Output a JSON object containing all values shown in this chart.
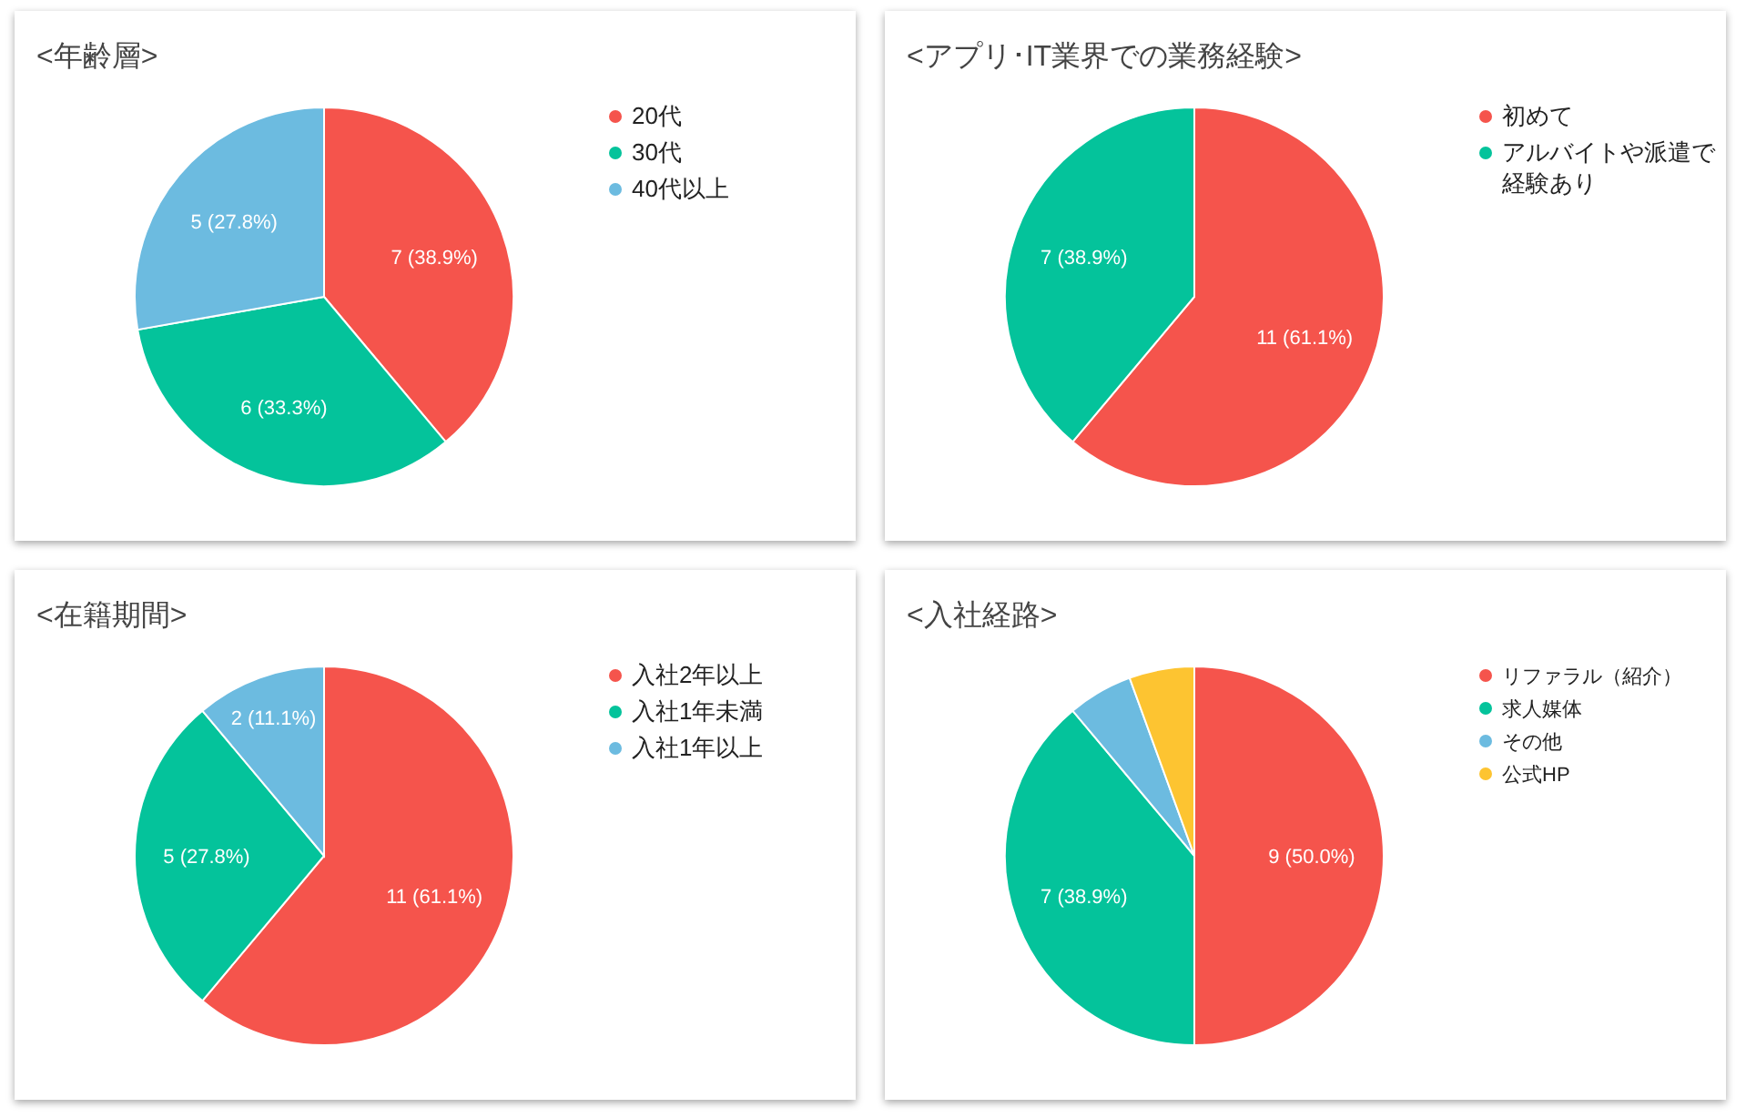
{
  "chart_data": [
    {
      "type": "pie",
      "title": "<年齢層>",
      "categories": [
        "20代",
        "30代",
        "40代以上"
      ],
      "values": [
        7,
        6,
        5
      ],
      "colors": [
        "#f5544c",
        "#04c39b",
        "#6cbbe0"
      ],
      "value_labels": [
        "7 (38.9%)",
        "6 (33.3%)",
        "5 (27.8%)"
      ],
      "legend": "right"
    },
    {
      "type": "pie",
      "title": "<アプリ･IT業界での業務経験>",
      "categories": [
        "初めて",
        "アルバイトや派遣で経験あり"
      ],
      "values": [
        11,
        7
      ],
      "colors": [
        "#f5544c",
        "#04c39b"
      ],
      "value_labels": [
        "11 (61.1%)",
        "7 (38.9%)"
      ],
      "legend": "right"
    },
    {
      "type": "pie",
      "title": "<在籍期間>",
      "categories": [
        "入社2年以上",
        "入社1年未満",
        "入社1年以上"
      ],
      "values": [
        11,
        5,
        2
      ],
      "colors": [
        "#f5544c",
        "#04c39b",
        "#6cbbe0"
      ],
      "value_labels": [
        "11 (61.1%)",
        "5 (27.8%)",
        "2 (11.1%)"
      ],
      "legend": "right"
    },
    {
      "type": "pie",
      "title": "<入社経路>",
      "categories": [
        "リファラル（紹介）",
        "求人媒体",
        "その他",
        "公式HP"
      ],
      "values": [
        9,
        7,
        1,
        1
      ],
      "colors": [
        "#f5544c",
        "#04c39b",
        "#6cbbe0",
        "#fdc431"
      ],
      "value_labels": [
        "9 (50.0%)",
        "7 (38.9%)",
        null,
        null
      ],
      "legend": "right"
    }
  ]
}
